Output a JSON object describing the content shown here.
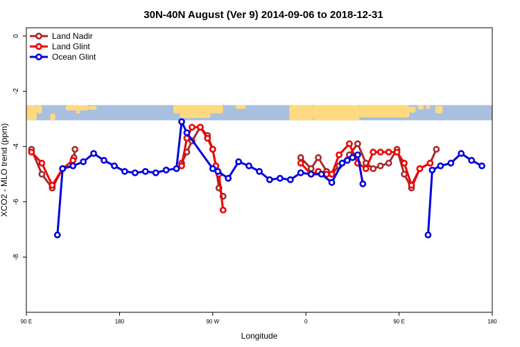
{
  "chart_data": {
    "type": "line",
    "title": "30N-40N August (Ver 9)   2014-09-06 to 2018-12-31",
    "xlabel": "Longitude",
    "ylabel": "XCO2 - MLO trend (ppm)",
    "xlim": [
      90,
      540
    ],
    "ylim": [
      -10,
      0.3
    ],
    "x_ticks": [
      {
        "value": 90,
        "label": "90 E"
      },
      {
        "value": 180,
        "label": "180"
      },
      {
        "value": 270,
        "label": "90 W"
      },
      {
        "value": 360,
        "label": "0"
      },
      {
        "value": 450,
        "label": "90 E"
      },
      {
        "value": 540,
        "label": "180"
      }
    ],
    "y_ticks": [
      {
        "value": 0,
        "label": "0"
      },
      {
        "value": -2,
        "label": "-2"
      },
      {
        "value": -4,
        "label": "-4"
      },
      {
        "value": -6,
        "label": "-6"
      },
      {
        "value": -8,
        "label": "-8"
      }
    ],
    "map_strip": {
      "ymin": -3.05,
      "ymax": -2.5,
      "ocean_color": "#a8bfe0",
      "land_color": "#ffd980"
    },
    "series": [
      {
        "name": "Land Nadir",
        "color": "#a52a2a",
        "segments": [
          [
            [
              95,
              -4.1
            ],
            [
              105,
              -5.0
            ],
            [
              115,
              -5.5
            ],
            [
              125,
              -4.8
            ],
            [
              135,
              -4.7
            ],
            [
              136,
              -4.4
            ],
            [
              137,
              -4.1
            ]
          ],
          [
            [
              240,
              -4.6
            ],
            [
              245,
              -4.2
            ],
            [
              250,
              -3.8
            ],
            [
              258,
              -3.3
            ],
            [
              265,
              -3.6
            ],
            [
              270,
              -4.1
            ],
            [
              273,
              -4.7
            ],
            [
              276,
              -5.5
            ],
            [
              280,
              -5.8
            ]
          ],
          [
            [
              355,
              -4.4
            ],
            [
              365,
              -4.8
            ],
            [
              372,
              -4.4
            ],
            [
              380,
              -4.9
            ],
            [
              385,
              -5.0
            ],
            [
              392,
              -4.7
            ],
            [
              402,
              -4.3
            ],
            [
              410,
              -3.9
            ],
            [
              418,
              -4.6
            ],
            [
              425,
              -4.8
            ],
            [
              432,
              -4.7
            ],
            [
              440,
              -4.6
            ],
            [
              448,
              -4.1
            ],
            [
              455,
              -5.0
            ],
            [
              462,
              -5.5
            ],
            [
              470,
              -4.8
            ],
            [
              480,
              -4.6
            ],
            [
              486,
              -4.1
            ]
          ]
        ]
      },
      {
        "name": "Land Glint",
        "color": "#ee0000",
        "segments": [
          [
            [
              95,
              -4.2
            ],
            [
              105,
              -4.6
            ],
            [
              115,
              -5.4
            ],
            [
              125,
              -4.8
            ],
            [
              135,
              -4.5
            ]
          ],
          [
            [
              240,
              -4.7
            ],
            [
              245,
              -3.7
            ],
            [
              250,
              -3.3
            ],
            [
              258,
              -3.3
            ],
            [
              265,
              -3.7
            ],
            [
              270,
              -4.1
            ],
            [
              273,
              -4.7
            ],
            [
              276,
              -5.0
            ],
            [
              280,
              -6.3
            ]
          ],
          [
            [
              355,
              -4.6
            ],
            [
              365,
              -5.0
            ],
            [
              372,
              -4.9
            ],
            [
              380,
              -5.0
            ],
            [
              385,
              -5.0
            ],
            [
              392,
              -4.3
            ],
            [
              402,
              -3.9
            ],
            [
              410,
              -4.6
            ],
            [
              418,
              -4.8
            ],
            [
              425,
              -4.2
            ],
            [
              432,
              -4.2
            ],
            [
              440,
              -4.2
            ],
            [
              448,
              -4.2
            ],
            [
              455,
              -4.6
            ],
            [
              462,
              -5.4
            ],
            [
              470,
              -4.8
            ],
            [
              480,
              -4.6
            ]
          ]
        ]
      },
      {
        "name": "Ocean Glint",
        "color": "#0000dd",
        "segments": [
          [
            [
              120,
              -7.2
            ],
            [
              125,
              -4.8
            ],
            [
              135,
              -4.7
            ],
            [
              145,
              -4.55
            ],
            [
              155,
              -4.25
            ],
            [
              165,
              -4.5
            ],
            [
              175,
              -4.7
            ],
            [
              185,
              -4.9
            ],
            [
              195,
              -4.95
            ],
            [
              205,
              -4.9
            ],
            [
              215,
              -4.95
            ],
            [
              225,
              -4.85
            ],
            [
              235,
              -4.8
            ],
            [
              240,
              -3.1
            ],
            [
              245,
              -3.5
            ],
            [
              270,
              -4.8
            ],
            [
              275,
              -4.9
            ],
            [
              285,
              -5.15
            ],
            [
              295,
              -4.55
            ],
            [
              305,
              -4.7
            ],
            [
              315,
              -4.9
            ],
            [
              325,
              -5.2
            ],
            [
              335,
              -5.15
            ],
            [
              345,
              -5.2
            ],
            [
              355,
              -4.95
            ],
            [
              365,
              -5.0
            ],
            [
              375,
              -5.0
            ],
            [
              385,
              -5.3
            ],
            [
              395,
              -4.6
            ],
            [
              400,
              -4.5
            ],
            [
              405,
              -4.4
            ],
            [
              410,
              -4.3
            ],
            [
              415,
              -5.35
            ]
          ],
          [
            [
              478,
              -7.2
            ],
            [
              482,
              -4.85
            ],
            [
              490,
              -4.7
            ],
            [
              500,
              -4.6
            ],
            [
              510,
              -4.25
            ],
            [
              520,
              -4.5
            ],
            [
              530,
              -4.7
            ]
          ]
        ]
      }
    ],
    "legend": {
      "position": "top-left",
      "entries": [
        "Land Nadir",
        "Land Glint",
        "Ocean Glint"
      ]
    }
  }
}
